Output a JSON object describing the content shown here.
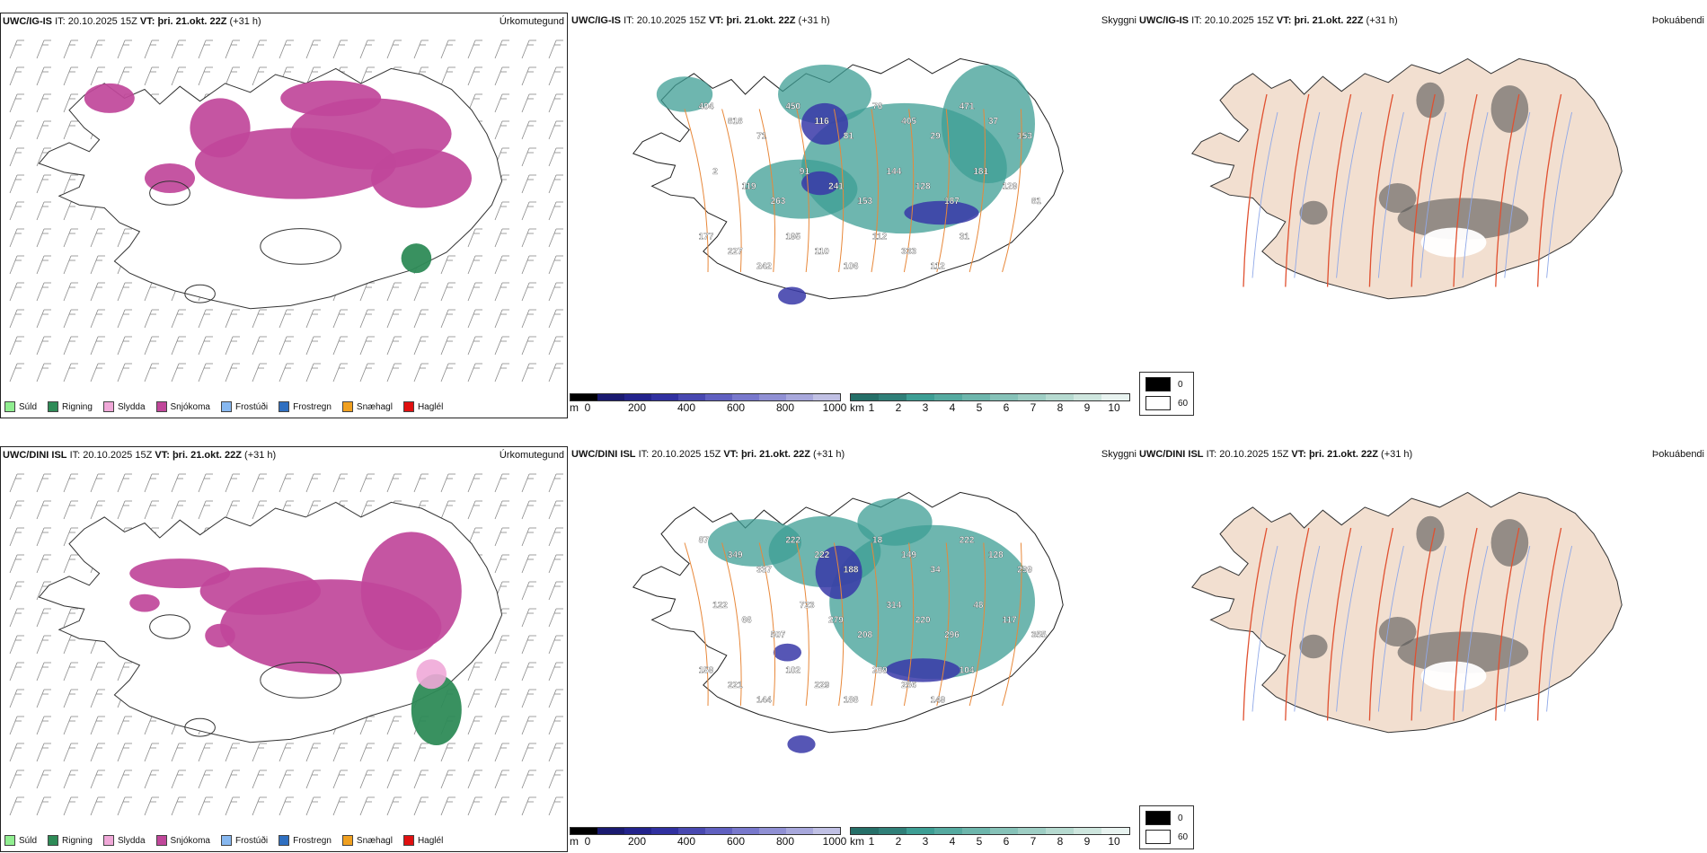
{
  "rows": [
    {
      "model": "UWC/IG-IS",
      "it_label": "IT:",
      "it_value": "20.10.2025 15Z",
      "vt_label": "VT:",
      "vt_value": "þri. 21.okt. 22Z",
      "lead": "(+31 h)",
      "ptype_panel": {
        "field": "Úrkomutegund",
        "legend": [
          {
            "label": "Súld",
            "color": "#90ee90"
          },
          {
            "label": "Rigning",
            "color": "#2e8b57"
          },
          {
            "label": "Slydda",
            "color": "#f0a8d8"
          },
          {
            "label": "Snjókoma",
            "color": "#c0479a"
          },
          {
            "label": "Frostúði",
            "color": "#87b8f0"
          },
          {
            "label": "Frostregn",
            "color": "#2f6fc0"
          },
          {
            "label": "Snæhagl",
            "color": "#f0a020"
          },
          {
            "label": "Haglél",
            "color": "#e01010"
          }
        ]
      },
      "visibility_panel": {
        "field": "Skyggni",
        "labels": [
          "404",
          "818",
          "71",
          "450",
          "116",
          "81",
          "76",
          "405",
          "29",
          "471",
          "37",
          "153",
          "2",
          "119",
          "263",
          "91",
          "241",
          "153",
          "144",
          "128",
          "187",
          "181",
          "129",
          "81",
          "177",
          "227",
          "242",
          "195",
          "110",
          "106",
          "112",
          "333",
          "112",
          "31"
        ],
        "ceiling_ticks": [
          "0",
          "200",
          "400",
          "600",
          "800",
          "1000"
        ],
        "ceiling_unit": "m",
        "vis_ticks": [
          "1",
          "2",
          "3",
          "4",
          "5",
          "6",
          "7",
          "8",
          "9",
          "10"
        ],
        "vis_unit": "km"
      },
      "sun_panel": {
        "field": "Þokuábendi",
        "legend": [
          {
            "label": "0",
            "color": "#000000"
          },
          {
            "label": "60",
            "color": "#ffffff"
          }
        ]
      }
    },
    {
      "model": "UWC/DINI ISL",
      "it_label": "IT:",
      "it_value": "20.10.2025 15Z",
      "vt_label": "VT:",
      "vt_value": "þri. 21.okt. 22Z",
      "lead": "(+31 h)",
      "ptype_panel": {
        "field": "Úrkomutegund",
        "legend": [
          {
            "label": "Súld",
            "color": "#90ee90"
          },
          {
            "label": "Rigning",
            "color": "#2e8b57"
          },
          {
            "label": "Slydda",
            "color": "#f0a8d8"
          },
          {
            "label": "Snjókoma",
            "color": "#c0479a"
          },
          {
            "label": "Frostúði",
            "color": "#87b8f0"
          },
          {
            "label": "Frostregn",
            "color": "#2f6fc0"
          },
          {
            "label": "Snæhagl",
            "color": "#f0a020"
          },
          {
            "label": "Haglél",
            "color": "#e01010"
          }
        ]
      },
      "visibility_panel": {
        "field": "Skyggni",
        "labels": [
          "87",
          "349",
          "337",
          "222",
          "222",
          "188",
          "18",
          "149",
          "34",
          "222",
          "128",
          "299",
          "122",
          "66",
          "507",
          "723",
          "279",
          "208",
          "314",
          "220",
          "296",
          "48",
          "117",
          "355",
          "159",
          "221",
          "144",
          "102",
          "229",
          "188",
          "289",
          "256",
          "149",
          "104"
        ],
        "ceiling_ticks": [
          "0",
          "200",
          "400",
          "600",
          "800",
          "1000"
        ],
        "ceiling_unit": "m",
        "vis_ticks": [
          "1",
          "2",
          "3",
          "4",
          "5",
          "6",
          "7",
          "8",
          "9",
          "10"
        ],
        "vis_unit": "km"
      },
      "sun_panel": {
        "field": "Þokuábendi",
        "legend": [
          {
            "label": "0",
            "color": "#000000"
          },
          {
            "label": "60",
            "color": "#ffffff"
          }
        ]
      }
    }
  ]
}
